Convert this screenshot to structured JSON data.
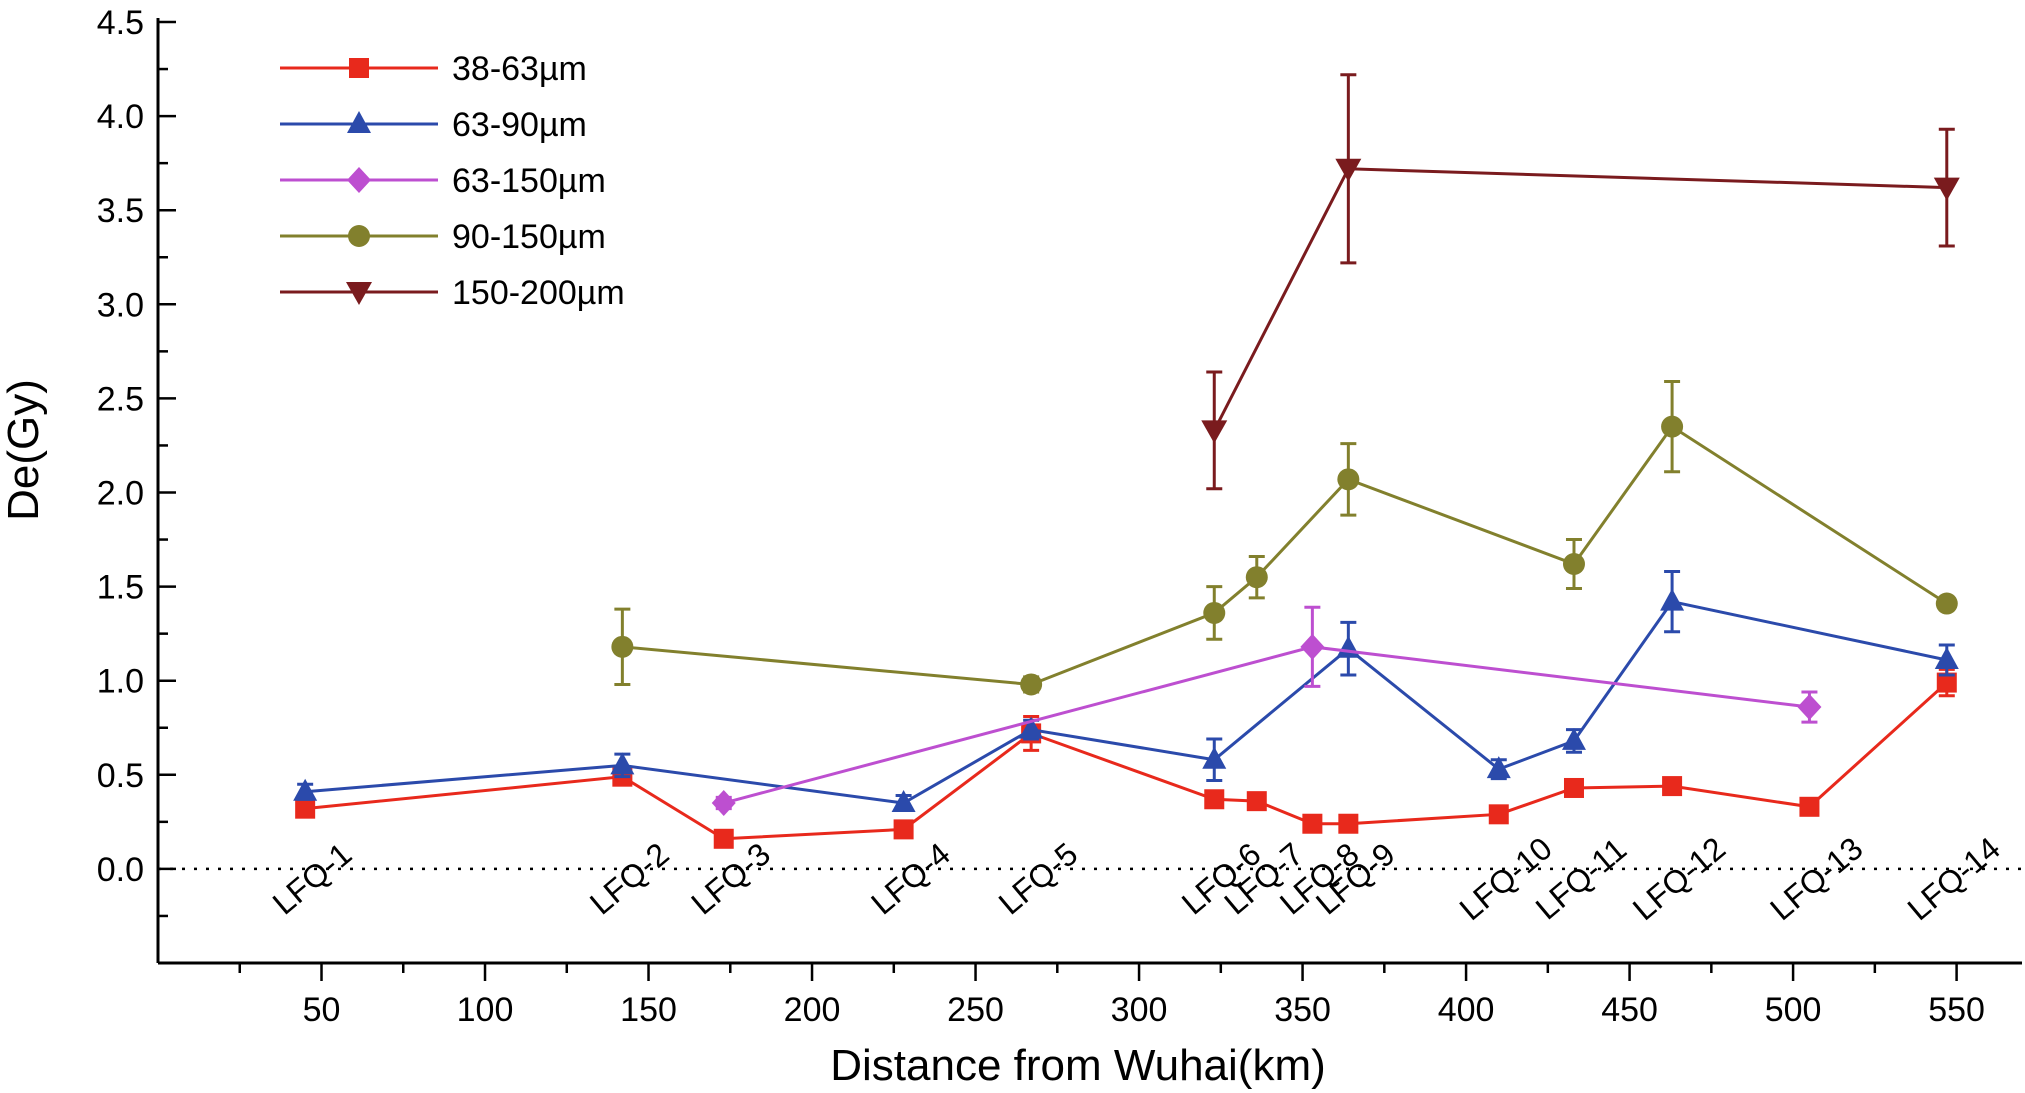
{
  "chart_data": {
    "type": "line",
    "xlabel": "Distance from Wuhai(km)",
    "ylabel": "De(Gy)",
    "xlim": [
      0,
      570
    ],
    "ylim": [
      -0.5,
      4.5
    ],
    "xticks": [
      50,
      100,
      150,
      200,
      250,
      300,
      350,
      400,
      450,
      500,
      550
    ],
    "yticks": [
      0.0,
      0.5,
      1.0,
      1.5,
      2.0,
      2.5,
      3.0,
      3.5,
      4.0,
      4.5
    ],
    "zero_reference_line": 0.0,
    "legend_position": "top-left",
    "samples": [
      {
        "label": "LFQ-1",
        "x": 45
      },
      {
        "label": "LFQ-2",
        "x": 142
      },
      {
        "label": "LFQ-3",
        "x": 173
      },
      {
        "label": "LFQ-4",
        "x": 228
      },
      {
        "label": "LFQ-5",
        "x": 267
      },
      {
        "label": "LFQ-6",
        "x": 323
      },
      {
        "label": "LFQ-7",
        "x": 336
      },
      {
        "label": "LFQ-8",
        "x": 353
      },
      {
        "label": "LFQ-9",
        "x": 364
      },
      {
        "label": "LFQ-10",
        "x": 410
      },
      {
        "label": "LFQ-11",
        "x": 433
      },
      {
        "label": "LFQ-12",
        "x": 463
      },
      {
        "label": "LFQ-13",
        "x": 505
      },
      {
        "label": "LFQ-14",
        "x": 547
      }
    ],
    "series": [
      {
        "name": "38-63µm",
        "color": "#e8291c",
        "marker": "square",
        "points": [
          {
            "x": 45,
            "y": 0.32,
            "err": 0.02
          },
          {
            "x": 142,
            "y": 0.49,
            "err": 0.03
          },
          {
            "x": 173,
            "y": 0.16,
            "err": 0.02
          },
          {
            "x": 228,
            "y": 0.21,
            "err": 0.02
          },
          {
            "x": 267,
            "y": 0.72,
            "err": 0.09
          },
          {
            "x": 323,
            "y": 0.37,
            "err": 0.04
          },
          {
            "x": 336,
            "y": 0.36,
            "err": 0.02
          },
          {
            "x": 353,
            "y": 0.24,
            "err": 0.02
          },
          {
            "x": 364,
            "y": 0.24,
            "err": 0.02
          },
          {
            "x": 410,
            "y": 0.29,
            "err": 0.02
          },
          {
            "x": 433,
            "y": 0.43,
            "err": 0.03
          },
          {
            "x": 463,
            "y": 0.44,
            "err": 0.03
          },
          {
            "x": 505,
            "y": 0.33,
            "err": 0.02
          },
          {
            "x": 547,
            "y": 0.99,
            "err": 0.07
          }
        ]
      },
      {
        "name": "63-90µm",
        "color": "#2b4aab",
        "marker": "triangle-up",
        "points": [
          {
            "x": 45,
            "y": 0.41,
            "err": 0.04
          },
          {
            "x": 142,
            "y": 0.55,
            "err": 0.06
          },
          {
            "x": 228,
            "y": 0.35,
            "err": 0.04
          },
          {
            "x": 267,
            "y": 0.74,
            "err": 0.05
          },
          {
            "x": 323,
            "y": 0.58,
            "err": 0.11
          },
          {
            "x": 364,
            "y": 1.17,
            "err": 0.14
          },
          {
            "x": 410,
            "y": 0.53,
            "err": 0.05
          },
          {
            "x": 433,
            "y": 0.68,
            "err": 0.06
          },
          {
            "x": 463,
            "y": 1.42,
            "err": 0.16
          },
          {
            "x": 547,
            "y": 1.11,
            "err": 0.08
          }
        ]
      },
      {
        "name": "63-150µm",
        "color": "#bd4fd0",
        "marker": "diamond",
        "points": [
          {
            "x": 173,
            "y": 0.35,
            "err": 0.03
          },
          {
            "x": 353,
            "y": 1.18,
            "err": 0.21
          },
          {
            "x": 505,
            "y": 0.86,
            "err": 0.08
          }
        ]
      },
      {
        "name": "90-150µm",
        "color": "#82802d",
        "marker": "circle",
        "points": [
          {
            "x": 142,
            "y": 1.18,
            "err": 0.2
          },
          {
            "x": 267,
            "y": 0.98,
            "err": 0.04
          },
          {
            "x": 323,
            "y": 1.36,
            "err": 0.14
          },
          {
            "x": 336,
            "y": 1.55,
            "err": 0.11
          },
          {
            "x": 364,
            "y": 2.07,
            "err": 0.19
          },
          {
            "x": 433,
            "y": 1.62,
            "err": 0.13
          },
          {
            "x": 463,
            "y": 2.35,
            "err": 0.24
          },
          {
            "x": 547,
            "y": 1.41,
            "err": 0.02
          }
        ]
      },
      {
        "name": "150-200µm",
        "color": "#7a1b1e",
        "marker": "triangle-down",
        "points": [
          {
            "x": 323,
            "y": 2.33,
            "err": 0.31
          },
          {
            "x": 364,
            "y": 3.72,
            "err": 0.5
          },
          {
            "x": 547,
            "y": 3.62,
            "err": 0.31
          }
        ]
      }
    ]
  }
}
